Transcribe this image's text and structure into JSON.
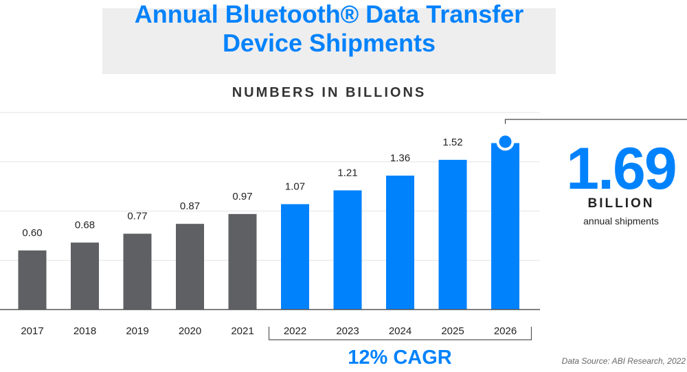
{
  "header": {
    "title_line1": "Annual Bluetooth® Data Transfer",
    "title_line2": "Device Shipments",
    "subtitle": "NUMBERS IN BILLIONS"
  },
  "highlight": {
    "value": "1.69",
    "unit": "BILLION",
    "caption": "annual shipments"
  },
  "cagr_label": "12% CAGR",
  "source": "Data Source: ABI Research, 2022",
  "colors": {
    "historical_bar": "#5f6064",
    "forecast_bar": "#0082fc",
    "title": "#0082fc",
    "gridline": "#e3e3e3",
    "axis": "#555555"
  },
  "chart_data": {
    "type": "bar",
    "categories": [
      "2017",
      "2018",
      "2019",
      "2020",
      "2021",
      "2022",
      "2023",
      "2024",
      "2025",
      "2026"
    ],
    "values": [
      0.6,
      0.68,
      0.77,
      0.87,
      0.97,
      1.07,
      1.21,
      1.36,
      1.52,
      1.69
    ],
    "value_labels": [
      "0.60",
      "0.68",
      "0.77",
      "0.87",
      "0.97",
      "1.07",
      "1.21",
      "1.36",
      "1.52",
      ""
    ],
    "series_color_by_category": [
      "historical",
      "historical",
      "historical",
      "historical",
      "historical",
      "forecast",
      "forecast",
      "forecast",
      "forecast",
      "forecast"
    ],
    "title": "Annual Bluetooth® Data Transfer Device Shipments",
    "subtitle": "NUMBERS IN BILLIONS",
    "ylim": [
      0,
      2.0
    ],
    "grid": true,
    "cagr_bracket": {
      "from": "2022",
      "to": "2026",
      "label": "12% CAGR"
    }
  }
}
